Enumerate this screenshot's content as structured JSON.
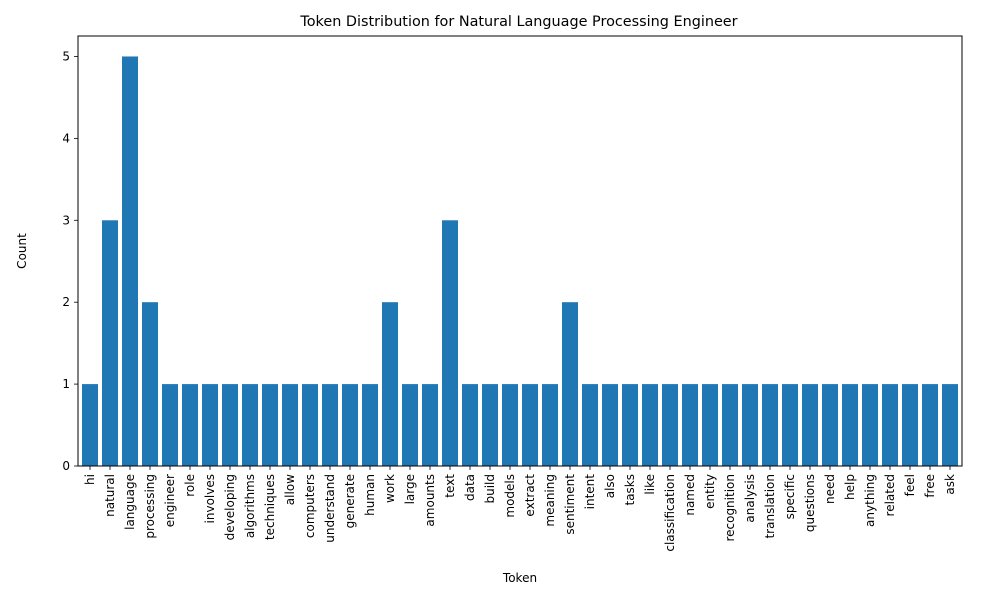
{
  "chart_data": {
    "type": "bar",
    "title": "Token Distribution for Natural Language Processing Engineer",
    "xlabel": "Token",
    "ylabel": "Count",
    "ylim": [
      0,
      5.25
    ],
    "yticks": [
      0,
      1,
      2,
      3,
      4,
      5
    ],
    "grid": false,
    "bar_color": "#1f77b4",
    "categories": [
      "hi",
      "natural",
      "language",
      "processing",
      "engineer",
      "role",
      "involves",
      "developing",
      "algorithms",
      "techniques",
      "allow",
      "computers",
      "understand",
      "generate",
      "human",
      "work",
      "large",
      "amounts",
      "text",
      "data",
      "build",
      "models",
      "extract",
      "meaning",
      "sentiment",
      "intent",
      "also",
      "tasks",
      "like",
      "classification",
      "named",
      "entity",
      "recognition",
      "analysis",
      "translation",
      "specific",
      "questions",
      "need",
      "help",
      "anything",
      "related",
      "feel",
      "free",
      "ask"
    ],
    "values": [
      1,
      3,
      5,
      2,
      1,
      1,
      1,
      1,
      1,
      1,
      1,
      1,
      1,
      1,
      1,
      2,
      1,
      1,
      3,
      1,
      1,
      1,
      1,
      1,
      2,
      1,
      1,
      1,
      1,
      1,
      1,
      1,
      1,
      1,
      1,
      1,
      1,
      1,
      1,
      1,
      1,
      1,
      1,
      1
    ]
  }
}
